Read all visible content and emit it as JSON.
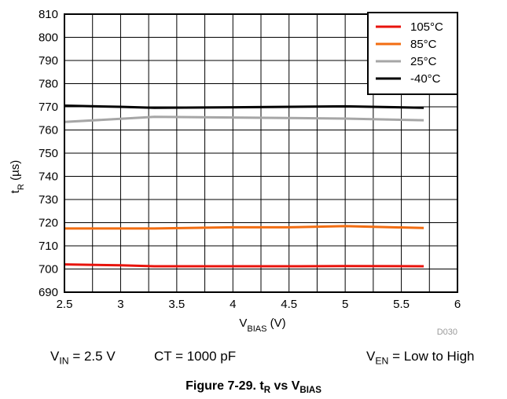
{
  "chart_data": {
    "type": "line",
    "xlabel": {
      "main": "V",
      "sub": "BIAS",
      "unit": " (V)"
    },
    "ylabel": {
      "main": "t",
      "sub": "R",
      "unit": " (µs)"
    },
    "xlim": [
      2.5,
      6
    ],
    "ylim": [
      690,
      810
    ],
    "x_ticks": [
      "2.5",
      "3",
      "3.5",
      "4",
      "4.5",
      "5",
      "5.5",
      "6"
    ],
    "y_ticks": [
      "690",
      "700",
      "710",
      "720",
      "730",
      "740",
      "750",
      "760",
      "770",
      "780",
      "790",
      "800",
      "810"
    ],
    "grid": true,
    "legend_position": "top-right",
    "series": [
      {
        "name": "105°C",
        "color": "#e8130c",
        "x": [
          2.5,
          3.0,
          3.3,
          4.0,
          4.5,
          5.0,
          5.7
        ],
        "y": [
          702.0,
          701.6,
          701.2,
          701.2,
          701.2,
          701.3,
          701.2
        ]
      },
      {
        "name": "85°C",
        "color": "#f26d12",
        "x": [
          2.5,
          3.0,
          3.3,
          4.0,
          4.5,
          5.0,
          5.7
        ],
        "y": [
          717.5,
          717.5,
          717.5,
          718.0,
          718.0,
          718.5,
          717.7
        ]
      },
      {
        "name": "25°C",
        "color": "#a6a6a6",
        "x": [
          2.5,
          3.0,
          3.3,
          4.0,
          4.5,
          5.0,
          5.7
        ],
        "y": [
          763.5,
          764.8,
          765.7,
          765.4,
          765.2,
          764.9,
          764.2
        ]
      },
      {
        "name": "-40°C",
        "color": "#000000",
        "x": [
          2.5,
          3.0,
          3.3,
          4.0,
          4.5,
          5.0,
          5.7
        ],
        "y": [
          770.5,
          770.0,
          769.6,
          769.8,
          770.0,
          770.2,
          769.6
        ]
      }
    ],
    "figure_code": "D030"
  },
  "conditions": {
    "vin": {
      "main": "V",
      "sub": "IN",
      "rest": " = 2.5 V"
    },
    "ct": "CT = 1000 pF",
    "ven": {
      "main": "V",
      "sub": "EN",
      "rest": " = Low to High"
    }
  },
  "caption": {
    "prefix": "Figure 7-29. t",
    "sub1": "R",
    "middle": " vs V",
    "sub2": "BIAS"
  }
}
